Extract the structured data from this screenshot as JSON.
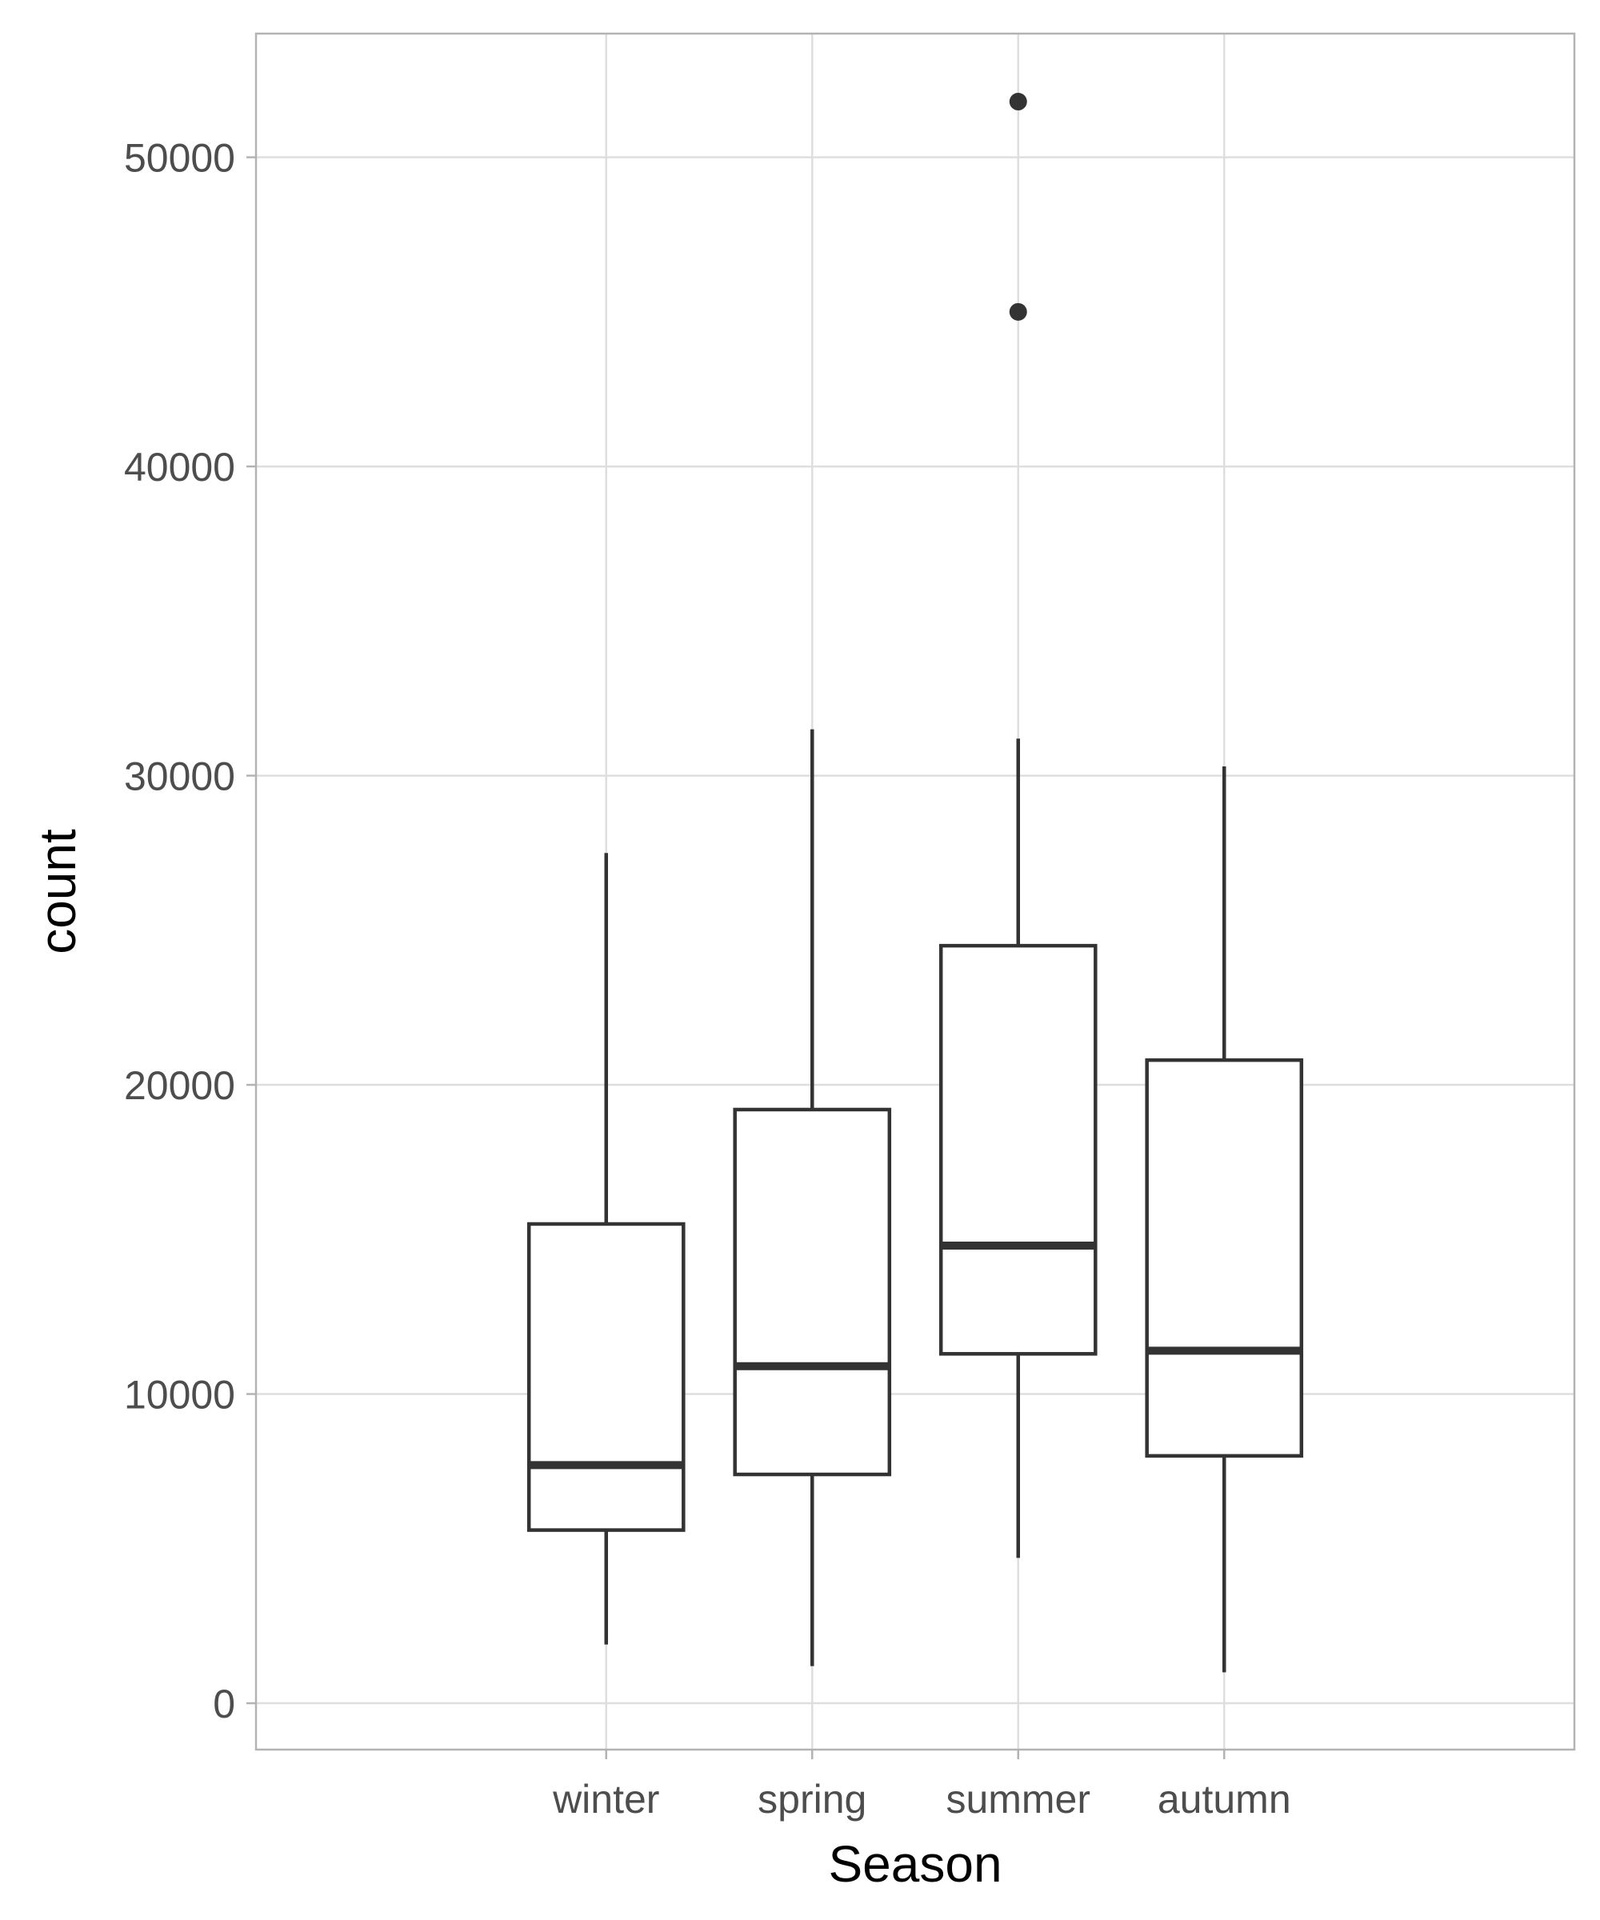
{
  "chart_data": {
    "type": "boxplot",
    "title": "",
    "xlabel": "Season",
    "ylabel": "count",
    "ylim": [
      -1500,
      54000
    ],
    "yticks": [
      0,
      10000,
      20000,
      30000,
      40000,
      50000
    ],
    "grid": true,
    "legend": "none",
    "categories": [
      "winter",
      "spring",
      "summer",
      "autumn"
    ],
    "boxes": [
      {
        "category": "winter",
        "whisker_low": 1900,
        "q1": 5600,
        "median": 7700,
        "q3": 15500,
        "whisker_high": 27500,
        "outliers": []
      },
      {
        "category": "spring",
        "whisker_low": 1200,
        "q1": 7400,
        "median": 10900,
        "q3": 19200,
        "whisker_high": 31500,
        "outliers": []
      },
      {
        "category": "summer",
        "whisker_low": 4700,
        "q1": 11300,
        "median": 14800,
        "q3": 24500,
        "whisker_high": 31200,
        "outliers": [
          45000,
          51800
        ]
      },
      {
        "category": "autumn",
        "whisker_low": 1000,
        "q1": 8000,
        "median": 11400,
        "q3": 20800,
        "whisker_high": 30300,
        "outliers": []
      }
    ],
    "colors": {
      "box_stroke": "#333333",
      "box_fill": "#ffffff",
      "grid": "#dedede",
      "panel_border": "#b3b3b3",
      "tick_label": "#4d4d4d",
      "axis_title": "#000000"
    }
  }
}
